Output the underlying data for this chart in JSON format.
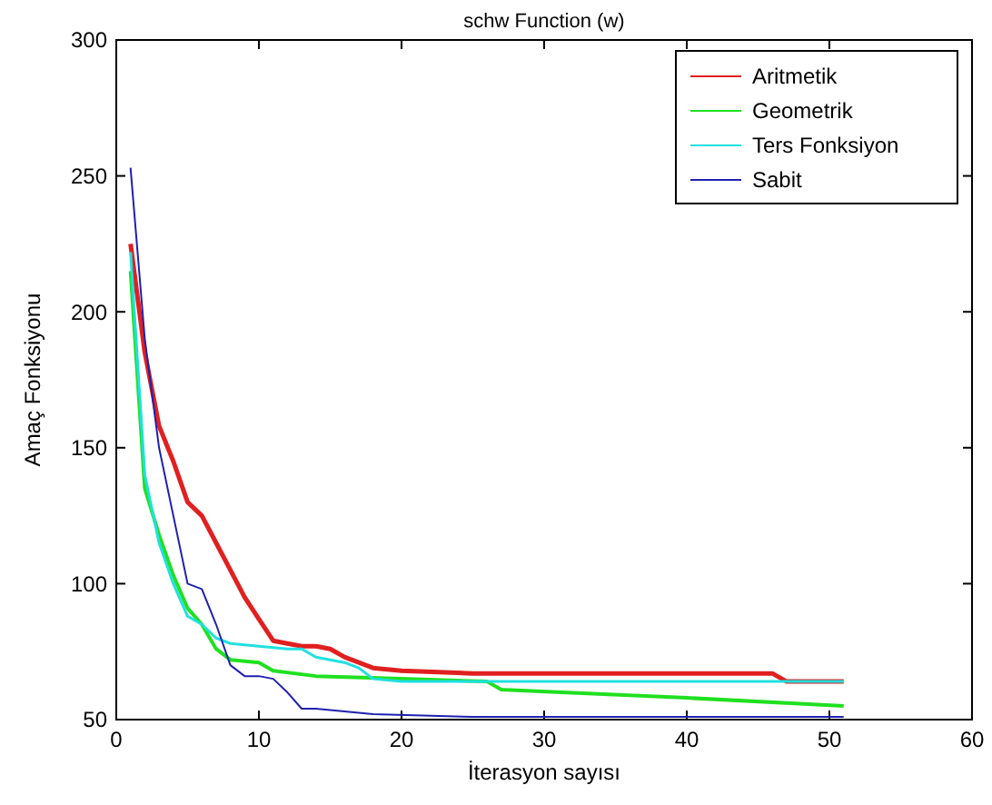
{
  "chart_data": {
    "type": "line",
    "title": "schw Function (w)",
    "xlabel": "İterasyon sayısı",
    "ylabel": "Amaç Fonksiyonu",
    "xlim": [
      0,
      60
    ],
    "xticks": [
      0,
      10,
      20,
      30,
      40,
      50,
      60
    ],
    "ylim": [
      50,
      300
    ],
    "yticks": [
      50,
      100,
      150,
      200,
      250,
      300
    ],
    "grid": false,
    "legend": "top right",
    "marker": "none",
    "line_style": "solid",
    "series": [
      {
        "name": "Aritmetik",
        "color": "#e02020",
        "x": [
          1,
          2,
          3,
          4,
          5,
          6,
          7,
          8,
          9,
          10,
          11,
          12,
          13,
          14,
          15,
          16,
          17,
          18,
          20,
          25,
          30,
          46,
          47,
          51
        ],
        "values": [
          225,
          185,
          158,
          145,
          130,
          125,
          115,
          105,
          95,
          87,
          79,
          78,
          77,
          77,
          76,
          73,
          71,
          69,
          68,
          67,
          67,
          67,
          64,
          64
        ]
      },
      {
        "name": "Geometrik",
        "color": "#20e020",
        "x": [
          1,
          2,
          3,
          4,
          5,
          6,
          7,
          8,
          10,
          11,
          14,
          20,
          26,
          27,
          40,
          51
        ],
        "values": [
          215,
          135,
          118,
          103,
          91,
          85,
          76,
          72,
          71,
          68,
          66,
          65,
          64,
          61,
          58,
          55
        ]
      },
      {
        "name": "Ters Fonksiyon",
        "color": "#20e0e0",
        "x": [
          1,
          2,
          3,
          4,
          5,
          6,
          7,
          8,
          10,
          12,
          13,
          14,
          16,
          17,
          18,
          20,
          51
        ],
        "values": [
          222,
          140,
          115,
          100,
          88,
          85,
          80,
          78,
          77,
          76,
          76,
          73,
          71,
          69,
          65,
          64,
          64
        ]
      },
      {
        "name": "Sabit",
        "color": "#2020b0",
        "x": [
          1,
          2,
          3,
          4,
          5,
          6,
          7,
          8,
          9,
          10,
          11,
          12,
          13,
          14,
          16,
          18,
          25,
          51
        ],
        "values": [
          253,
          190,
          150,
          125,
          100,
          98,
          85,
          70,
          66,
          66,
          65,
          60,
          54,
          54,
          53,
          52,
          51,
          51
        ]
      }
    ]
  }
}
